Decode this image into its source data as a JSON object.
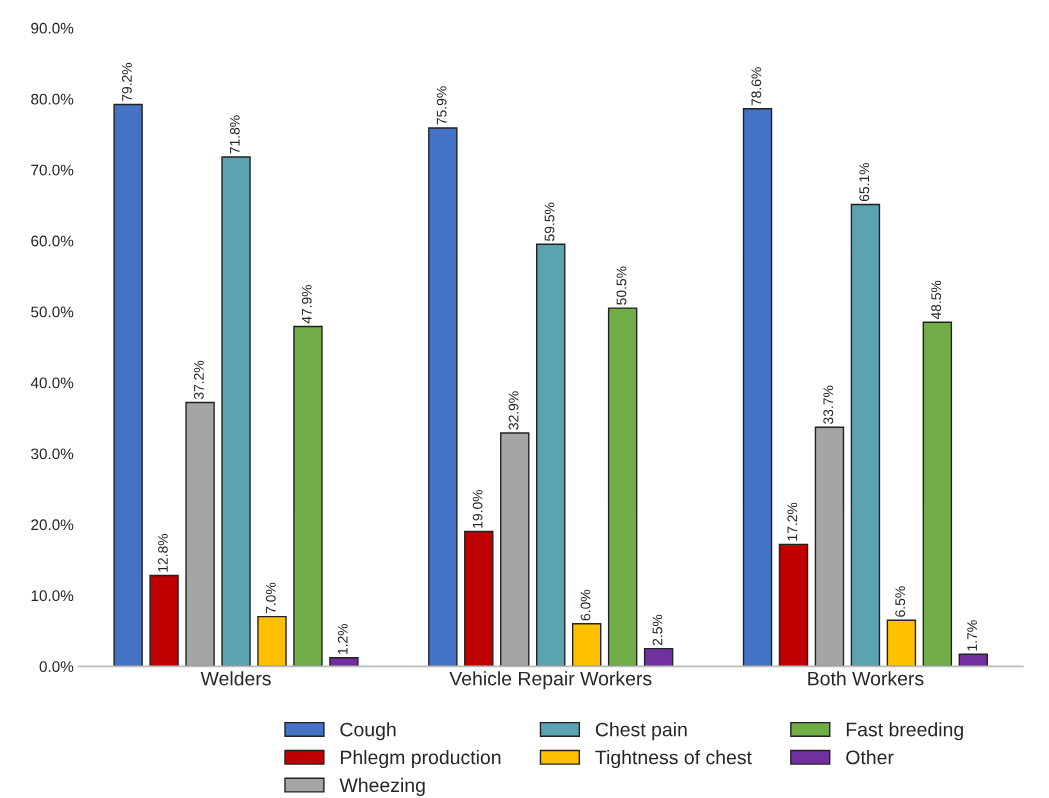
{
  "chart_data": {
    "type": "bar",
    "categories": [
      "Welders",
      "Vehicle Repair Workers",
      "Both Workers"
    ],
    "series": [
      {
        "name": "Cough",
        "color": "#4472c4",
        "values": [
          79.2,
          75.9,
          78.6
        ],
        "value_labels": [
          "79.2%",
          "75.9%",
          "78.6%"
        ]
      },
      {
        "name": "Phlegm production",
        "color": "#c00000",
        "values": [
          12.8,
          19.0,
          17.2
        ],
        "value_labels": [
          "12.8%",
          "19.0%",
          "17.2%"
        ]
      },
      {
        "name": "Wheezing",
        "color": "#a5a5a5",
        "values": [
          37.2,
          32.9,
          33.7
        ],
        "value_labels": [
          "37.2%",
          "32.9%",
          "33.7%"
        ]
      },
      {
        "name": "Chest pain",
        "color": "#5ba3b0",
        "values": [
          71.8,
          59.5,
          65.1
        ],
        "value_labels": [
          "71.8%",
          "59.5%",
          "65.1%"
        ]
      },
      {
        "name": "Tightness of chest",
        "color": "#ffc000",
        "values": [
          7.0,
          6.0,
          6.5
        ],
        "value_labels": [
          "7.0%",
          "6.0%",
          "6.5%"
        ]
      },
      {
        "name": "Fast breeding",
        "color": "#70ad47",
        "values": [
          47.9,
          50.5,
          48.5
        ],
        "value_labels": [
          "47.9%",
          "50.5%",
          "48.5%"
        ]
      },
      {
        "name": "Other",
        "color": "#7030a0",
        "values": [
          1.2,
          2.5,
          1.7
        ],
        "value_labels": [
          "1.2%",
          "2.5%",
          "1.7%"
        ]
      }
    ],
    "ylim": [
      0,
      90
    ],
    "yticks": [
      {
        "value": 0,
        "label": "0.0%"
      },
      {
        "value": 10,
        "label": "10.0%"
      },
      {
        "value": 20,
        "label": "20.0%"
      },
      {
        "value": 30,
        "label": "30.0%"
      },
      {
        "value": 40,
        "label": "40.0%"
      },
      {
        "value": 50,
        "label": "50.0%"
      },
      {
        "value": 60,
        "label": "60.0%"
      },
      {
        "value": 70,
        "label": "70.0%"
      },
      {
        "value": 80,
        "label": "80.0%"
      },
      {
        "value": 90,
        "label": "90.0%"
      }
    ],
    "grid": false,
    "legend": "bottom"
  }
}
